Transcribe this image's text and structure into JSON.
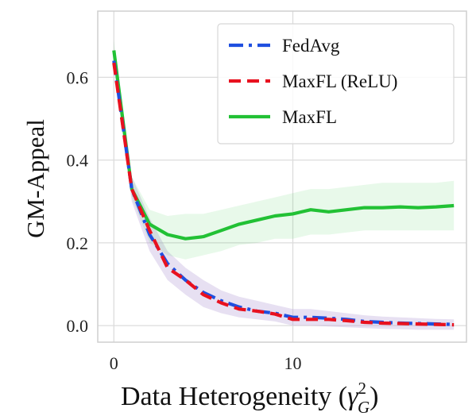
{
  "chart_data": {
    "type": "line",
    "xlabel": "Data Heterogeneity",
    "xlabel_math": {
      "base": "γ",
      "sup": "2",
      "sub": "G"
    },
    "ylabel": "GM-Appeal",
    "xlim": [
      -0.9,
      19.7
    ],
    "ylim": [
      -0.04,
      0.76
    ],
    "x_ticks": [
      0,
      10
    ],
    "x_tick_labels": [
      "0",
      "10"
    ],
    "y_ticks": [
      0.0,
      0.2,
      0.4,
      0.6
    ],
    "y_tick_labels": [
      "0.0",
      "0.2",
      "0.4",
      "0.6"
    ],
    "grid": true,
    "legend_position": "top-right",
    "x": [
      0,
      1,
      2,
      3,
      4,
      5,
      6,
      7,
      8,
      9,
      10,
      11,
      12,
      13,
      14,
      15,
      16,
      17,
      18,
      19
    ],
    "series": [
      {
        "name": "FedAvg",
        "style": "dashdot",
        "color": "#1f4fe0",
        "values": [
          0.64,
          0.33,
          0.22,
          0.15,
          0.11,
          0.08,
          0.06,
          0.045,
          0.035,
          0.03,
          0.02,
          0.02,
          0.018,
          0.015,
          0.01,
          0.008,
          0.006,
          0.005,
          0.004,
          0.003
        ]
      },
      {
        "name": "MaxFL (ReLU)",
        "style": "dashed",
        "color": "#e8111f",
        "values": [
          0.635,
          0.33,
          0.23,
          0.14,
          0.11,
          0.075,
          0.055,
          0.04,
          0.035,
          0.028,
          0.015,
          0.015,
          0.015,
          0.012,
          0.008,
          0.006,
          0.005,
          0.004,
          0.003,
          0.002
        ]
      },
      {
        "name": "MaxFL",
        "style": "solid",
        "color": "#22c135",
        "values": [
          0.665,
          0.33,
          0.245,
          0.22,
          0.21,
          0.215,
          0.23,
          0.245,
          0.255,
          0.265,
          0.27,
          0.28,
          0.275,
          0.28,
          0.285,
          0.285,
          0.287,
          0.285,
          0.287,
          0.29
        ],
        "band_lower": [
          0.64,
          0.31,
          0.2,
          0.17,
          0.16,
          0.17,
          0.18,
          0.195,
          0.2,
          0.21,
          0.21,
          0.22,
          0.22,
          0.225,
          0.23,
          0.23,
          0.23,
          0.23,
          0.23,
          0.23
        ],
        "band_upper": [
          0.69,
          0.36,
          0.28,
          0.265,
          0.27,
          0.27,
          0.28,
          0.29,
          0.3,
          0.31,
          0.32,
          0.33,
          0.33,
          0.335,
          0.34,
          0.345,
          0.345,
          0.345,
          0.345,
          0.35
        ]
      }
    ],
    "lower_band": {
      "color": "#b9a7d9",
      "band_lower": [
        0.62,
        0.3,
        0.18,
        0.11,
        0.075,
        0.045,
        0.03,
        0.02,
        0.015,
        0.01,
        0.0,
        0.0,
        -0.002,
        -0.004,
        -0.006,
        -0.008,
        -0.009,
        -0.01,
        -0.01,
        -0.01
      ],
      "band_upper": [
        0.67,
        0.36,
        0.26,
        0.18,
        0.14,
        0.11,
        0.085,
        0.07,
        0.06,
        0.05,
        0.04,
        0.04,
        0.035,
        0.03,
        0.025,
        0.022,
        0.02,
        0.018,
        0.016,
        0.015
      ]
    }
  }
}
